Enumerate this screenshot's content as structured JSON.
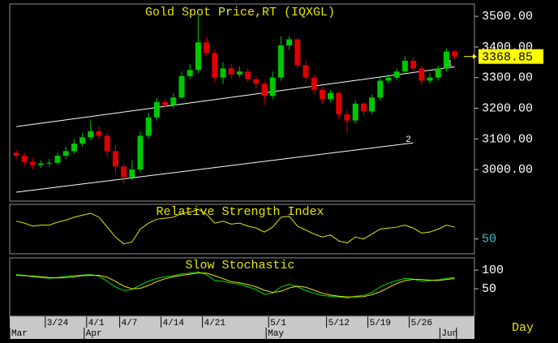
{
  "chart_data": [
    {
      "type": "candlestick",
      "title": "Gold Spot Price,RT (IQXGL)",
      "period": "Day",
      "categories": [
        null,
        null,
        null,
        null,
        "3/24",
        null,
        null,
        null,
        null,
        "4/1",
        null,
        null,
        null,
        "4/7",
        null,
        null,
        null,
        null,
        "4/14",
        null,
        null,
        null,
        null,
        "4/21",
        null,
        null,
        null,
        null,
        null,
        null,
        null,
        "5/1",
        null,
        null,
        null,
        null,
        null,
        null,
        "5/12",
        null,
        null,
        null,
        null,
        "5/19",
        null,
        null,
        null,
        null,
        "5/26",
        null,
        null,
        null,
        null,
        null,
        null
      ],
      "months": [
        "Mar",
        null,
        null,
        null,
        null,
        null,
        null,
        null,
        null,
        "Apr",
        null,
        null,
        null,
        null,
        null,
        null,
        null,
        null,
        null,
        null,
        null,
        null,
        null,
        null,
        null,
        null,
        null,
        null,
        null,
        null,
        null,
        "May",
        null,
        null,
        null,
        null,
        null,
        null,
        null,
        null,
        null,
        null,
        null,
        null,
        null,
        null,
        null,
        null,
        null,
        null,
        null,
        null,
        "Jun",
        null
      ],
      "open": [
        3055,
        3045,
        3025,
        3015,
        3020,
        3022,
        3045,
        3060,
        3085,
        3105,
        3125,
        3110,
        3060,
        3010,
        2975,
        3000,
        3110,
        3170,
        3220,
        3210,
        3235,
        3305,
        3325,
        3415,
        3380,
        3300,
        3330,
        3310,
        3320,
        3295,
        3280,
        3240,
        3300,
        3405,
        3425,
        3340,
        3300,
        3260,
        3230,
        3250,
        3180,
        3160,
        3215,
        3190,
        3235,
        3290,
        3300,
        3320,
        3355,
        3330,
        3290,
        3300,
        3330,
        3385
      ],
      "high": [
        3065,
        3055,
        3040,
        3030,
        3035,
        3055,
        3075,
        3100,
        3120,
        3160,
        3140,
        3120,
        3080,
        3020,
        3030,
        3125,
        3185,
        3235,
        3230,
        3250,
        3320,
        3345,
        3500,
        3430,
        3390,
        3350,
        3345,
        3335,
        3330,
        3305,
        3290,
        3320,
        3435,
        3435,
        3430,
        3355,
        3310,
        3270,
        3260,
        3255,
        3195,
        3225,
        3220,
        3245,
        3300,
        3310,
        3330,
        3370,
        3365,
        3340,
        3315,
        3340,
        3395,
        3390
      ],
      "low": [
        3035,
        3010,
        3000,
        3005,
        3010,
        3015,
        3035,
        3050,
        3075,
        3095,
        3100,
        3040,
        2990,
        2955,
        2965,
        2990,
        3100,
        3160,
        3200,
        3200,
        3230,
        3295,
        3315,
        3370,
        3285,
        3280,
        3295,
        3300,
        3285,
        3265,
        3210,
        3230,
        3290,
        3390,
        3330,
        3285,
        3245,
        3215,
        3220,
        3165,
        3120,
        3150,
        3175,
        3180,
        3225,
        3280,
        3290,
        3310,
        3320,
        3275,
        3280,
        3290,
        3320,
        3360
      ],
      "close": [
        3045,
        3025,
        3015,
        3020,
        3022,
        3045,
        3060,
        3085,
        3105,
        3125,
        3110,
        3060,
        3010,
        2975,
        3000,
        3110,
        3170,
        3220,
        3210,
        3235,
        3305,
        3325,
        3415,
        3380,
        3300,
        3330,
        3310,
        3320,
        3295,
        3280,
        3240,
        3300,
        3405,
        3425,
        3340,
        3300,
        3260,
        3230,
        3250,
        3180,
        3160,
        3215,
        3190,
        3235,
        3290,
        3300,
        3320,
        3355,
        3330,
        3290,
        3300,
        3330,
        3385,
        3368.85
      ],
      "up_color": "#00c800",
      "down_color": "#e00000",
      "trendlines": [
        {
          "label": "1",
          "x": [
            0,
            53
          ],
          "y": [
            3140,
            3335
          ],
          "color": "#ffffff"
        },
        {
          "label": "2",
          "x": [
            0,
            48
          ],
          "y": [
            2926,
            3087
          ],
          "color": "#ffffff"
        }
      ],
      "ylim": [
        2897,
        3540
      ],
      "yticks": [
        {
          "value": 3000,
          "label": "3000.00"
        },
        {
          "value": 3100,
          "label": "3100.00"
        },
        {
          "value": 3200,
          "label": "3200.00"
        },
        {
          "value": 3300,
          "label": "3300.00"
        },
        {
          "value": 3400,
          "label": "3400.00"
        },
        {
          "value": 3500,
          "label": "3500.00"
        }
      ]
    },
    {
      "type": "line",
      "title": "Relative Strength Index",
      "series": [
        {
          "color": "#e6e600",
          "values": [
            68,
            66,
            63,
            64,
            64,
            67,
            69,
            72,
            74,
            76,
            72,
            62,
            52,
            45,
            47,
            60,
            66,
            70,
            71,
            72,
            76,
            77,
            80,
            75,
            66,
            68,
            65,
            66,
            63,
            61,
            57,
            62,
            72,
            73,
            63,
            59,
            55,
            52,
            54,
            48,
            46,
            52,
            50,
            55,
            60,
            61,
            62,
            64,
            61,
            56,
            57,
            60,
            64,
            62
          ]
        }
      ],
      "ylim": [
        35,
        85
      ],
      "yticks": [
        50
      ],
      "tick_color": "#40c0c0"
    },
    {
      "type": "line",
      "title": "Slow Stochastic",
      "series": [
        {
          "color": "#00e000",
          "values": [
            88,
            86,
            82,
            80,
            78,
            80,
            83,
            85,
            87,
            88,
            84,
            70,
            55,
            45,
            48,
            60,
            70,
            78,
            82,
            85,
            90,
            92,
            95,
            88,
            72,
            70,
            65,
            62,
            55,
            48,
            35,
            38,
            55,
            62,
            55,
            45,
            38,
            32,
            30,
            28,
            25,
            30,
            32,
            40,
            55,
            65,
            72,
            78,
            76,
            70,
            72,
            74,
            78,
            80
          ]
        },
        {
          "color": "#e6e600",
          "values": [
            86,
            85,
            84,
            82,
            80,
            79,
            80,
            82,
            85,
            86,
            86,
            81,
            70,
            57,
            50,
            51,
            59,
            69,
            77,
            82,
            86,
            89,
            92,
            92,
            85,
            77,
            69,
            66,
            61,
            55,
            46,
            40,
            43,
            52,
            57,
            54,
            46,
            38,
            33,
            30,
            28,
            28,
            29,
            34,
            42,
            53,
            64,
            72,
            75,
            75,
            73,
            72,
            75,
            77
          ]
        }
      ],
      "ylim": [
        -24,
        133
      ],
      "yticks": [
        50,
        100
      ],
      "tick_color": "#ffffff"
    }
  ]
}
